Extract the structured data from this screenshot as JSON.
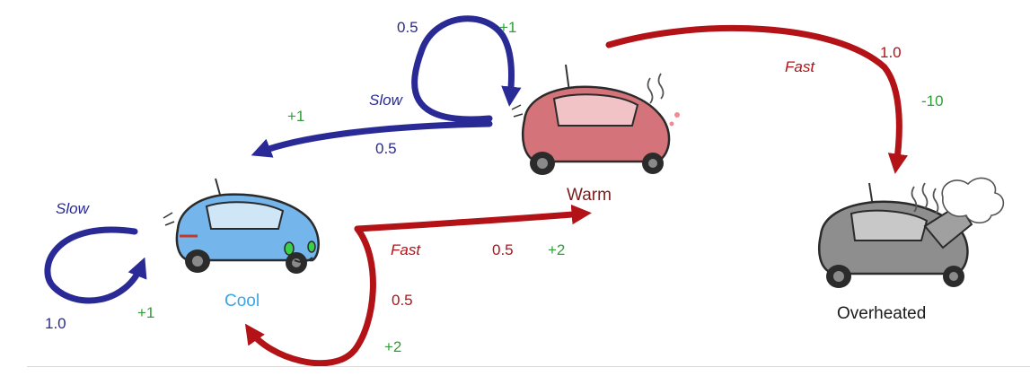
{
  "colors": {
    "slow": "#2a2a96",
    "fast": "#b31217",
    "reward": "#2e9e35",
    "cool": "#3aa6e6",
    "warm": "#7a1d1d",
    "overheated": "#1a1a1a",
    "car_cool": "#74b6ec",
    "car_warm": "#d4747a",
    "car_over": "#8e8e8e"
  },
  "states": {
    "cool": "Cool",
    "warm": "Warm",
    "overheated": "Overheated"
  },
  "transitions": {
    "cool_slow": {
      "action": "Slow",
      "probability": "1.0",
      "reward": "+1"
    },
    "cool_fast_to_warm": {
      "action": "Fast",
      "probability": "0.5",
      "reward": "+2"
    },
    "cool_fast_to_cool": {
      "probability": "0.5",
      "reward": "+2"
    },
    "warm_slow_to_warm": {
      "probability": "0.5",
      "reward": "+1"
    },
    "warm_slow_to_cool": {
      "action": "Slow",
      "probability": "0.5",
      "reward": "+1"
    },
    "warm_fast": {
      "action": "Fast",
      "probability": "1.0",
      "reward": "-10"
    }
  },
  "icons": {
    "cool_car": "cool-car-icon",
    "warm_car": "warm-car-icon",
    "overheated_car": "overheated-car-icon"
  }
}
